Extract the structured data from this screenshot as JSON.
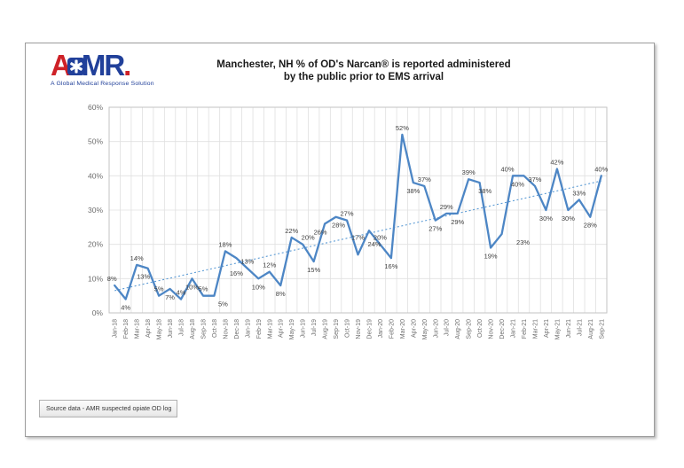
{
  "logo": {
    "letter_a": "A",
    "letters_mr": "MR",
    "period": ".",
    "tagline": "A Global Medical Response Solution",
    "colors": {
      "red": "#ce2127",
      "blue": "#21409a"
    }
  },
  "title": {
    "line1": "Manchester, NH % of OD's Narcan® is reported administered",
    "line2": "by the public prior to EMS arrival"
  },
  "source_note": "Source data - AMR suspected opiate OD log",
  "chart_data": {
    "type": "line",
    "title": "Manchester, NH % of OD's Narcan® is reported administered by the public prior to EMS arrival",
    "categories": [
      "Jan-18",
      "Feb-18",
      "Mar-18",
      "Apr-18",
      "May-18",
      "Jun-18",
      "Jul-18",
      "Aug-18",
      "Sep-18",
      "Oct-18",
      "Nov-18",
      "Dec-18",
      "Jan-19",
      "Feb-19",
      "Mar-19",
      "Apr-19",
      "May-19",
      "Jun-19",
      "Jul-19",
      "Aug-19",
      "Sep-19",
      "Oct-19",
      "Nov-19",
      "Dec-19",
      "Jan-20",
      "Feb-20",
      "Mar-20",
      "Apr-20",
      "May-20",
      "Jun-20",
      "Jul-20",
      "Aug-20",
      "Sep-20",
      "Oct-20",
      "Nov-20",
      "Dec-20",
      "Jan-21",
      "Feb-21",
      "Mar-21",
      "Apr-21",
      "May-21",
      "Jun-21",
      "Jul-21",
      "Aug-21",
      "Sep-21"
    ],
    "values": [
      8,
      4,
      14,
      13,
      5,
      7,
      4,
      10,
      5,
      5,
      18,
      16,
      13,
      10,
      12,
      8,
      22,
      20,
      15,
      26,
      28,
      27,
      17,
      24,
      20,
      16,
      52,
      38,
      37,
      27,
      29,
      29,
      39,
      38,
      19,
      23,
      40,
      40,
      37,
      30,
      42,
      30,
      33,
      28,
      40
    ],
    "data_labels": [
      "8%",
      "4%",
      "14%",
      "13%",
      "5%",
      "7%",
      "4%",
      "10%",
      "5%",
      "5%",
      "18%",
      "16%",
      "13%",
      "10%",
      "12%",
      "8%",
      "22%",
      "20%",
      "15%",
      "26%",
      "28%",
      "27%",
      "17%",
      "24%",
      "20%",
      "16%",
      "52%",
      "38%",
      "37%",
      "27%",
      "29%",
      "29%",
      "39%",
      "38%",
      "19%",
      "23%",
      "40%",
      "40%",
      "37%",
      "30%",
      "42%",
      "30%",
      "33%",
      "28%",
      "40%"
    ],
    "xlabel": "",
    "ylabel": "",
    "ylim": [
      0,
      60
    ],
    "y_ticks": [
      "0%",
      "10%",
      "20%",
      "30%",
      "40%",
      "50%",
      "60%"
    ],
    "grid": true,
    "legend_position": "none",
    "series_color": "#4d86c5",
    "gridline_color": "#e0e0e0",
    "plot_border_color": "#c3c3c3",
    "trendline": {
      "style": "dotted",
      "start_value": 6.5,
      "end_value": 38.5,
      "color": "#5b9bd5"
    },
    "label_sides": [
      "a",
      "b",
      "a",
      "b",
      "a",
      "b",
      "a",
      "b",
      "a",
      "b",
      "a",
      "b",
      "a",
      "b",
      "a",
      "b",
      "a",
      "a",
      "b",
      "b",
      "b",
      "a",
      "a",
      "b",
      "a",
      "b",
      "a",
      "b",
      "a",
      "b",
      "a",
      "b",
      "a",
      "b",
      "b",
      "b",
      "a",
      "b",
      "a",
      "b",
      "a",
      "b",
      "a",
      "b",
      "a"
    ],
    "label_dx": {
      "0": -3,
      "3": -5,
      "9": 10,
      "17": 6,
      "19": -5,
      "20": 3,
      "23": 6,
      "33": 6,
      "35": 24,
      "36": -6,
      "37": -7
    },
    "label_dy": {
      "11": 8,
      "22": -12,
      "23": 6
    }
  }
}
